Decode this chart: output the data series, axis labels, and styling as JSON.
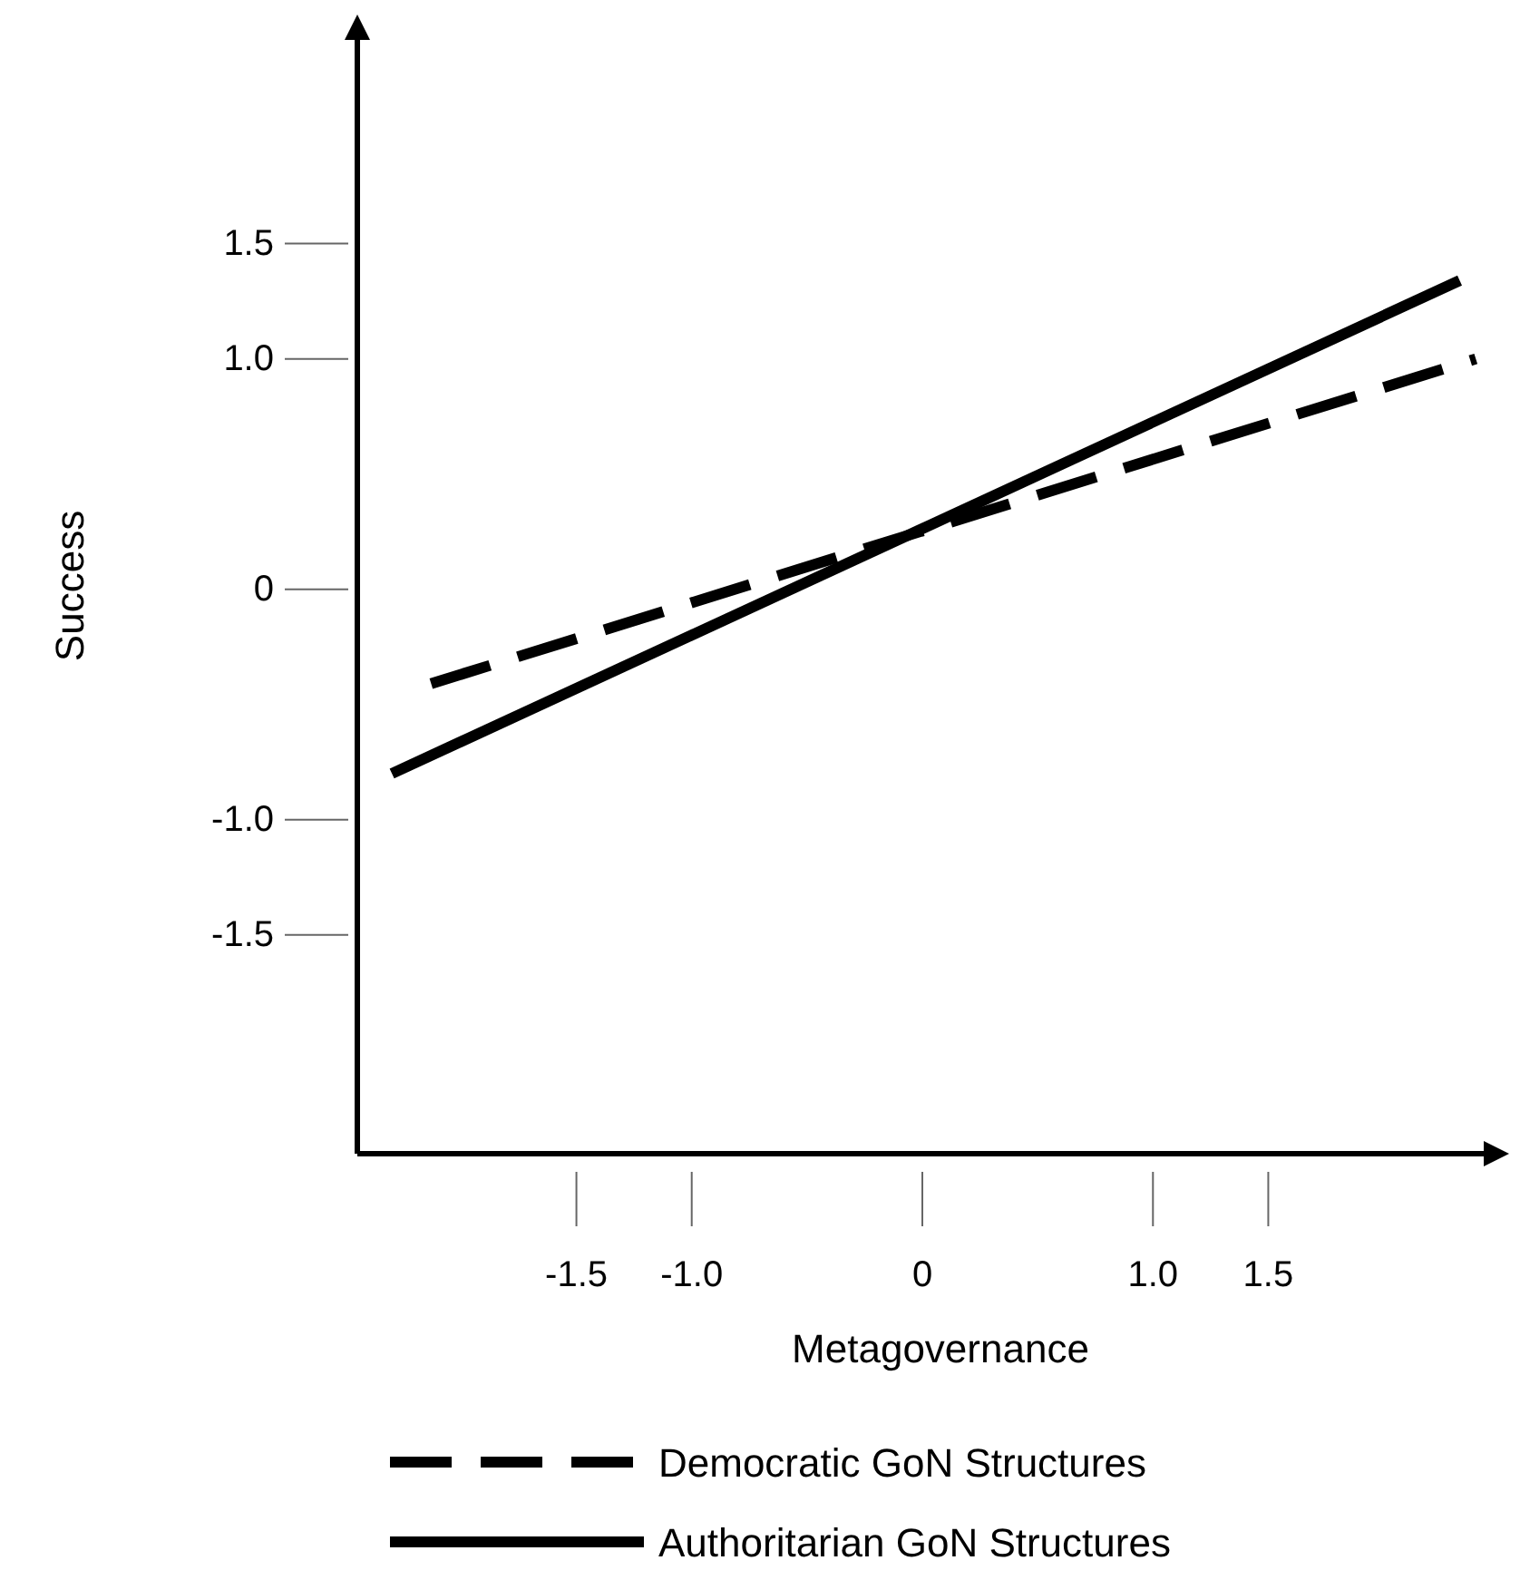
{
  "chart_data": {
    "type": "line",
    "xlabel": "Metagovernance",
    "ylabel": "Success",
    "series": [
      {
        "name": "Democratic  GoN Structures",
        "color": "#000000",
        "line_style": "dashed",
        "x": [
          -2.13,
          2.4
        ],
        "values": [
          -0.41,
          1.0
        ]
      },
      {
        "name": "Authoritarian GoN Structures",
        "color": "#000000",
        "line_style": "solid",
        "x": [
          -2.3,
          2.33
        ],
        "values": [
          -0.8,
          1.34
        ]
      }
    ],
    "xlim": [
      -2.45,
      2.45
    ],
    "ylim": [
      -2.45,
      2.4
    ],
    "xticks": [
      {
        "value": -1.5,
        "label": "-1.5"
      },
      {
        "value": -1,
        "label": "-1.0"
      },
      0,
      {
        "value": 1,
        "label": "1.0"
      },
      {
        "value": 1.5,
        "label": "1.5"
      }
    ],
    "yticks": [
      {
        "value": -1.5,
        "label": "-1.5"
      },
      {
        "value": -1,
        "label": "-1.0"
      },
      0,
      {
        "value": 1,
        "label": "1.0"
      },
      {
        "value": 1.5,
        "label": "1.5"
      }
    ],
    "grid": false,
    "legend": "bottom",
    "marker": "none"
  }
}
